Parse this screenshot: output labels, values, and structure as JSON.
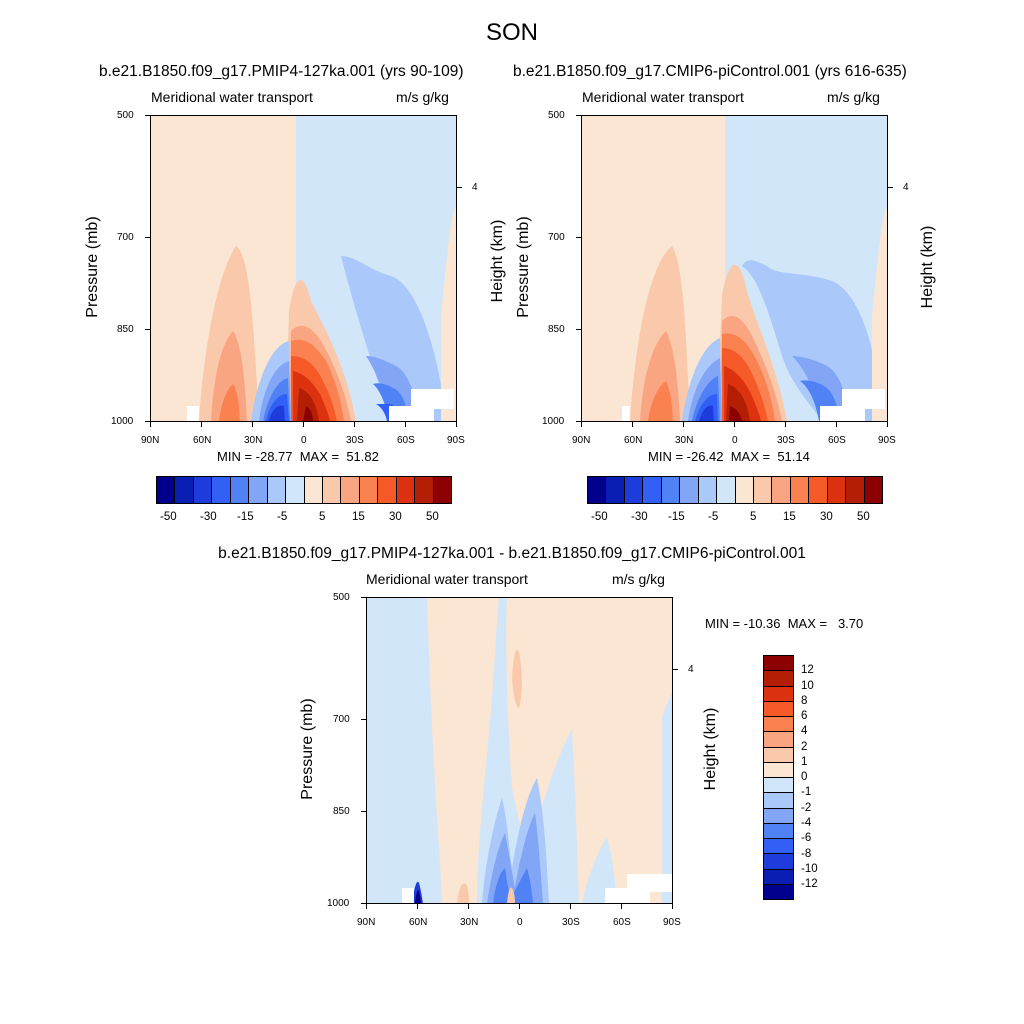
{
  "header": {
    "title": "SON",
    "panel1_title": "b.e21.B1850.f09_g17.PMIP4-127ka.001 (yrs 90-109)",
    "panel2_title": "b.e21.B1850.f09_g17.CMIP6-piControl.001 (yrs 616-635)",
    "diff_title": "b.e21.B1850.f09_g17.PMIP4-127ka.001 - b.e21.B1850.f09_g17.CMIP6-piControl.001"
  },
  "colors": {
    "full_scale": [
      "#00008c",
      "#0a1eb4",
      "#1e3cdc",
      "#325ff5",
      "#5082f5",
      "#82a5f5",
      "#aac8fa",
      "#d2e6fa",
      "#fae6d2",
      "#fac8aa",
      "#faa582",
      "#fa8250",
      "#f55a28",
      "#dc320f",
      "#b41e05",
      "#8c0000"
    ],
    "diff_scale": [
      "#00008c",
      "#0a1eb4",
      "#1e3cdc",
      "#325ff5",
      "#5082f5",
      "#82a5f5",
      "#aac8fa",
      "#d2e6fa",
      "#fae6d2",
      "#fac8aa",
      "#faa582",
      "#fa8250",
      "#f55a28",
      "#dc320f",
      "#b41e05",
      "#8c0000"
    ]
  },
  "chart_data": [
    {
      "type": "heatmap",
      "title": "b.e21.B1850.f09_g17.PMIP4-127ka.001 (yrs 90-109)",
      "left_string": "Meridional water transport",
      "right_string": "m/s g/kg",
      "ylabel": "Pressure (mb)",
      "ylabel_right": "Height (km)",
      "x_ticks": [
        "90N",
        "60N",
        "30N",
        "0",
        "30S",
        "60S",
        "90S"
      ],
      "y_ticks": [
        "500",
        "700",
        "850",
        "1000"
      ],
      "y_right_ticks": [
        "4"
      ],
      "min": -28.77,
      "max": 51.82,
      "min_max_text": "MIN = -28.77  MAX =  51.82",
      "colorbar_labels": [
        "-50",
        "-30",
        "-15",
        "-5",
        "5",
        "15",
        "30",
        "50"
      ],
      "features": [
        {
          "lat_from": 90,
          "lat_to": 5,
          "level": "weak positive"
        },
        {
          "lat_from": 5,
          "lat_to": -90,
          "level": "weak negative"
        },
        {
          "lat_center": 40,
          "level": "positive max ~15"
        },
        {
          "lat_center": 18,
          "level": "negative min ~-28.77"
        },
        {
          "lat_center": -3,
          "level": "positive max 51.82"
        },
        {
          "lat_center": -37,
          "level": "negative ~-15"
        }
      ]
    },
    {
      "type": "heatmap",
      "title": "b.e21.B1850.f09_g17.CMIP6-piControl.001 (yrs 616-635)",
      "left_string": "Meridional water transport",
      "right_string": "m/s g/kg",
      "ylabel": "Pressure (mb)",
      "ylabel_right": "Height (km)",
      "x_ticks": [
        "90N",
        "60N",
        "30N",
        "0",
        "30S",
        "60S",
        "90S"
      ],
      "y_ticks": [
        "500",
        "700",
        "850",
        "1000"
      ],
      "y_right_ticks": [
        "4"
      ],
      "min": -26.42,
      "max": 51.14,
      "min_max_text": "MIN = -26.42  MAX =  51.14",
      "colorbar_labels": [
        "-50",
        "-30",
        "-15",
        "-5",
        "5",
        "15",
        "30",
        "50"
      ]
    },
    {
      "type": "heatmap",
      "title": "b.e21.B1850.f09_g17.PMIP4-127ka.001 - b.e21.B1850.f09_g17.CMIP6-piControl.001",
      "left_string": "Meridional water transport",
      "right_string": "m/s g/kg",
      "ylabel": "Pressure (mb)",
      "ylabel_right": "Height (km)",
      "x_ticks": [
        "90N",
        "60N",
        "30N",
        "0",
        "30S",
        "60S",
        "90S"
      ],
      "y_ticks": [
        "500",
        "700",
        "850",
        "1000"
      ],
      "y_right_ticks": [
        "4"
      ],
      "min": -10.36,
      "max": 3.7,
      "min_max_text": "MIN = -10.36  MAX =   3.70",
      "colorbar_labels": [
        "12",
        "10",
        "8",
        "6",
        "4",
        "2",
        "1",
        "0",
        "-1",
        "-2",
        "-4",
        "-6",
        "-8",
        "-10",
        "-12"
      ]
    }
  ]
}
